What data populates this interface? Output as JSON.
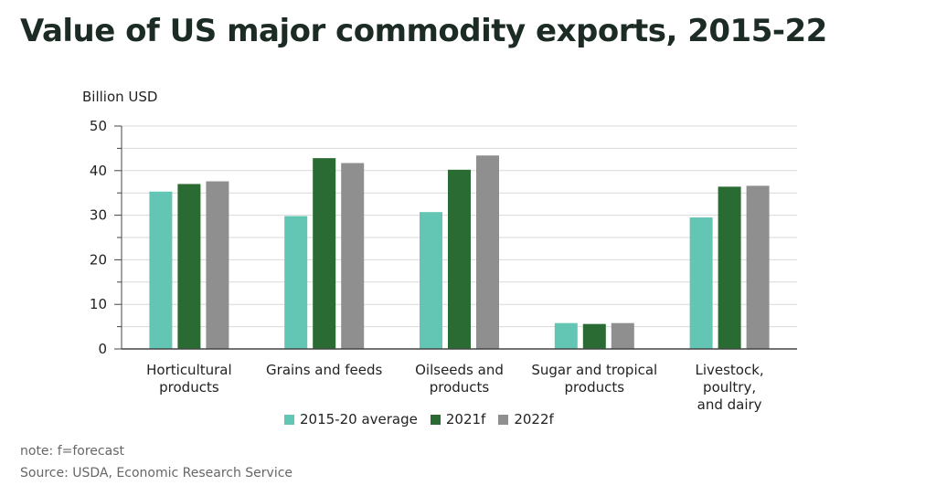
{
  "title": "Value of US major commodity exports, 2015-22",
  "note": "note: f=forecast",
  "source": "Source: USDA, Economic Research Service",
  "chart_data": {
    "type": "bar",
    "ylabel": "Billion USD",
    "ylim": [
      0,
      50
    ],
    "yticks": [
      0,
      10,
      20,
      30,
      40,
      50
    ],
    "grid": true,
    "legend_position": "bottom",
    "categories": [
      [
        "Horticultural",
        "products"
      ],
      [
        "Grains and feeds"
      ],
      [
        "Oilseeds and",
        "products"
      ],
      [
        "Sugar and tropical",
        "products"
      ],
      [
        "Livestock,",
        "poultry,",
        "and dairy"
      ]
    ],
    "series": [
      {
        "name": "2015-20 average",
        "color": "#63c5b3",
        "values": [
          35.3,
          29.8,
          30.7,
          5.8,
          29.5
        ]
      },
      {
        "name": "2021f",
        "color": "#2a6a33",
        "values": [
          37.0,
          42.8,
          40.2,
          5.6,
          36.4
        ]
      },
      {
        "name": "2022f",
        "color": "#8f8f8f",
        "values": [
          37.6,
          41.7,
          43.4,
          5.8,
          36.6
        ]
      }
    ]
  }
}
